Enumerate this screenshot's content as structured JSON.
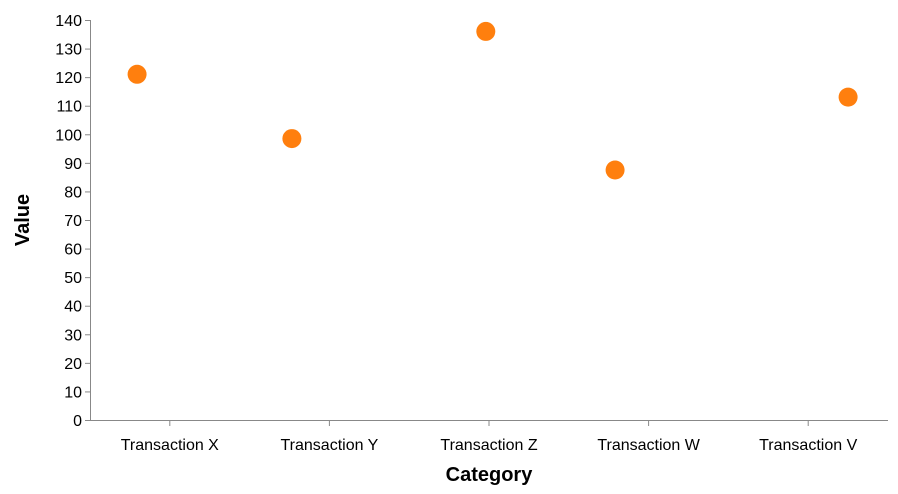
{
  "chart_data": {
    "type": "scatter",
    "categories": [
      "Transaction X",
      "Transaction Y",
      "Transaction Z",
      "Transaction W",
      "Transaction V"
    ],
    "values": [
      121,
      98.5,
      136,
      87.5,
      113
    ],
    "xlabel": "Category",
    "ylabel": "Value",
    "ylim": [
      0,
      140
    ],
    "yticks": [
      0,
      10,
      20,
      30,
      40,
      50,
      60,
      70,
      80,
      90,
      100,
      110,
      120,
      130,
      140
    ],
    "grid": false,
    "point_color": "#ff7f0e"
  }
}
